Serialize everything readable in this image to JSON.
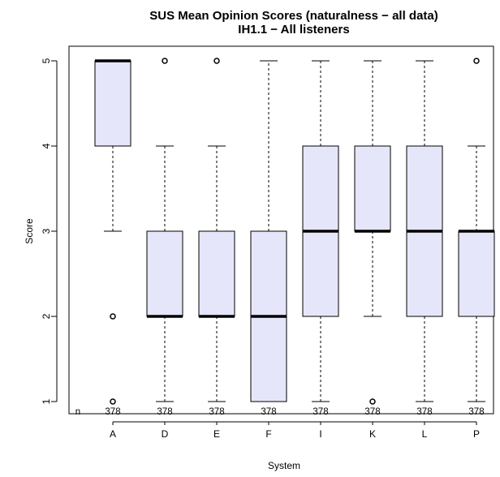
{
  "chart_data": {
    "type": "boxplot",
    "title": "SUS Mean Opinion Scores (naturalness − all data)",
    "subtitle": "IH1.1 − All listeners",
    "xlabel": "System",
    "ylabel": "Score",
    "ylim": [
      1,
      5
    ],
    "yticks": [
      "1",
      "2",
      "3",
      "4",
      "5"
    ],
    "n_label": "n",
    "categories": [
      "A",
      "D",
      "E",
      "F",
      "I",
      "K",
      "L",
      "P"
    ],
    "counts": [
      "378",
      "378",
      "378",
      "378",
      "378",
      "378",
      "378",
      "378"
    ],
    "fill_color": "#e6e6fa",
    "boxes": [
      {
        "system": "A",
        "whisker_low": 3,
        "q1": 4,
        "median": 5,
        "q3": 5,
        "whisker_high": 5,
        "outliers": [
          2,
          1
        ]
      },
      {
        "system": "D",
        "whisker_low": 1,
        "q1": 2,
        "median": 2,
        "q3": 3,
        "whisker_high": 4,
        "outliers": [
          5
        ]
      },
      {
        "system": "E",
        "whisker_low": 1,
        "q1": 2,
        "median": 2,
        "q3": 3,
        "whisker_high": 4,
        "outliers": [
          5
        ]
      },
      {
        "system": "F",
        "whisker_low": 1,
        "q1": 1,
        "median": 2,
        "q3": 3,
        "whisker_high": 5,
        "outliers": []
      },
      {
        "system": "I",
        "whisker_low": 1,
        "q1": 2,
        "median": 3,
        "q3": 4,
        "whisker_high": 5,
        "outliers": []
      },
      {
        "system": "K",
        "whisker_low": 2,
        "q1": 3,
        "median": 3,
        "q3": 4,
        "whisker_high": 5,
        "outliers": [
          1
        ]
      },
      {
        "system": "L",
        "whisker_low": 1,
        "q1": 2,
        "median": 3,
        "q3": 4,
        "whisker_high": 5,
        "outliers": []
      },
      {
        "system": "P",
        "whisker_low": 1,
        "q1": 2,
        "median": 3,
        "q3": 3,
        "whisker_high": 4,
        "outliers": [
          5
        ]
      }
    ],
    "grid": false,
    "legend": "none"
  }
}
